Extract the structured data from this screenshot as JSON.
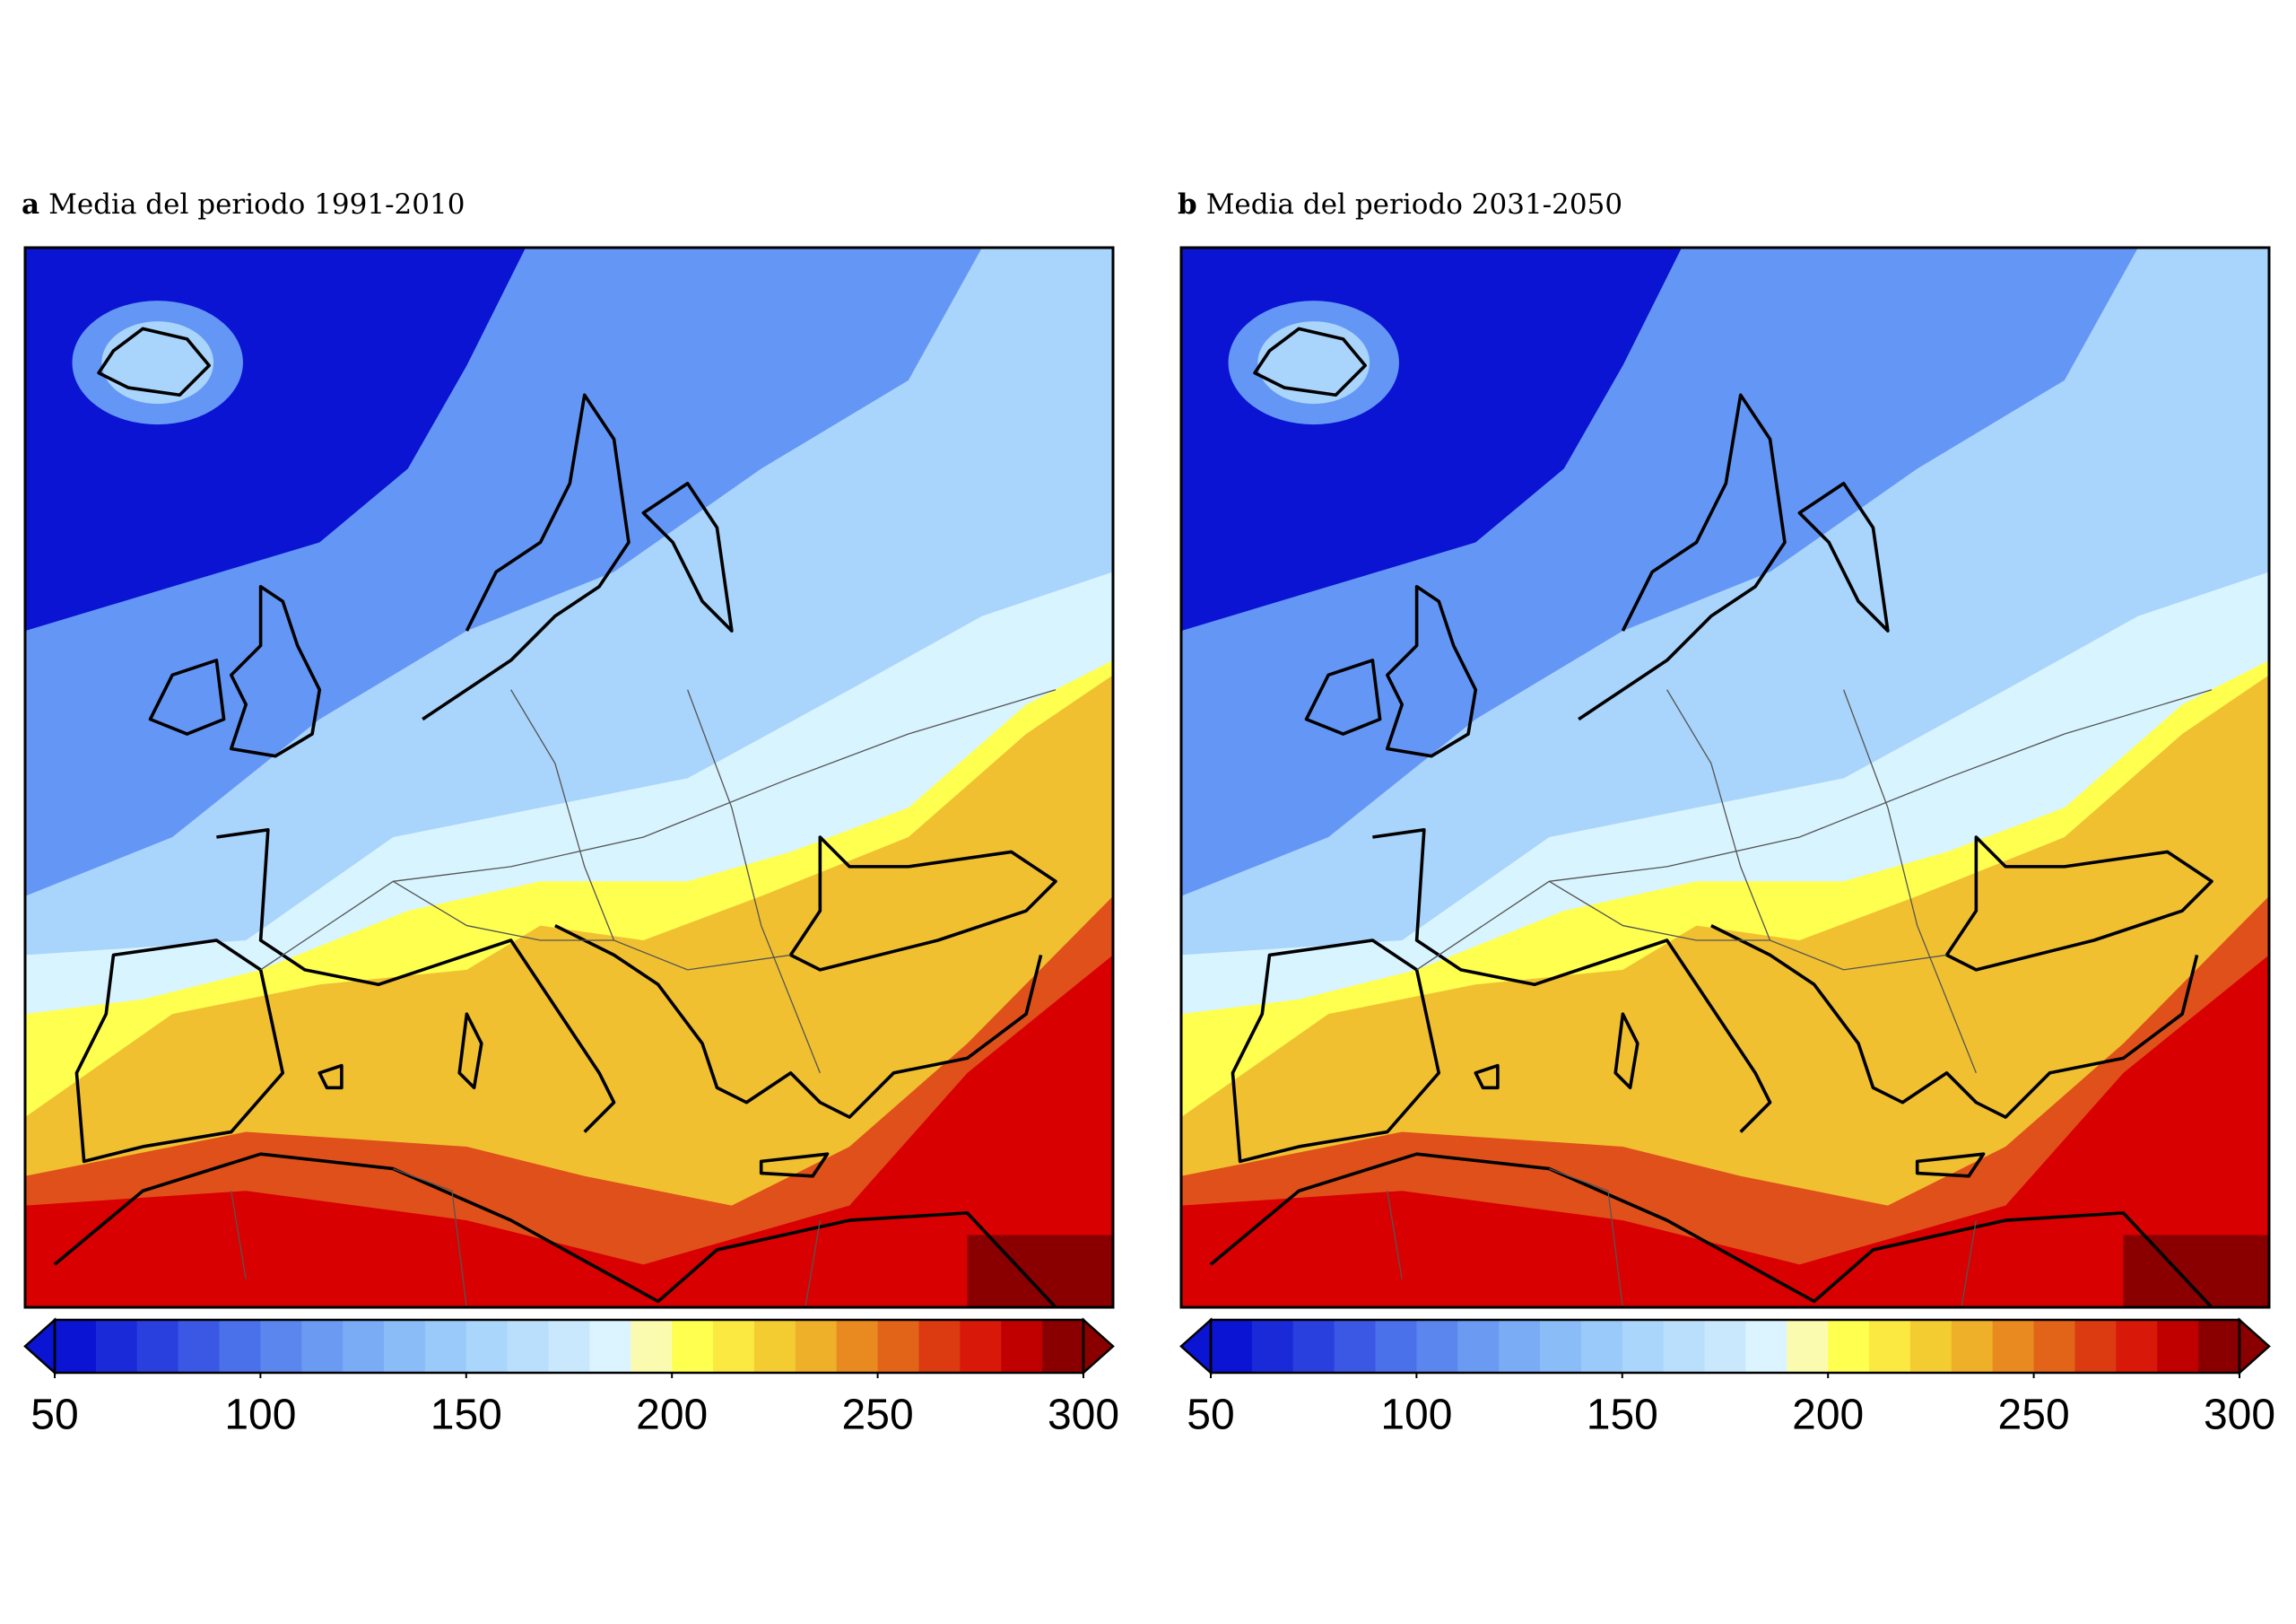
{
  "panels": [
    {
      "label": "a",
      "title": "Media del periodo 1991-2010",
      "colorbar": {
        "range": [
          50,
          300
        ],
        "ticks": [
          50,
          100,
          150,
          200,
          250,
          300
        ],
        "colors": [
          "#0a14d2",
          "#1a2ad8",
          "#2a40de",
          "#3a58e4",
          "#4a70ea",
          "#5a86ee",
          "#6a9af2",
          "#7aacf5",
          "#8abcf8",
          "#9acaf9",
          "#aad6fb",
          "#badffc",
          "#cae8fd",
          "#dbf4ff",
          "#fbfbb0",
          "#ffff50",
          "#fbe840",
          "#f3cc32",
          "#eeb028",
          "#e88a20",
          "#e26418",
          "#dc3a10",
          "#d81808",
          "#c00000",
          "#8a0000"
        ]
      }
    },
    {
      "label": "b",
      "title": "Media del periodo 2031-2050",
      "colorbar": {
        "range": [
          50,
          300
        ],
        "ticks": [
          50,
          100,
          150,
          200,
          250,
          300
        ],
        "colors": [
          "#0a14d2",
          "#1a2ad8",
          "#2a40de",
          "#3a58e4",
          "#4a70ea",
          "#5a86ee",
          "#6a9af2",
          "#7aacf5",
          "#8abcf8",
          "#9acaf9",
          "#aad6fb",
          "#badffc",
          "#cae8fd",
          "#dbf4ff",
          "#fbfbb0",
          "#ffff50",
          "#fbe840",
          "#f3cc32",
          "#eeb028",
          "#e88a20",
          "#e26418",
          "#dc3a10",
          "#d81808",
          "#c00000",
          "#8a0000"
        ]
      }
    }
  ]
}
